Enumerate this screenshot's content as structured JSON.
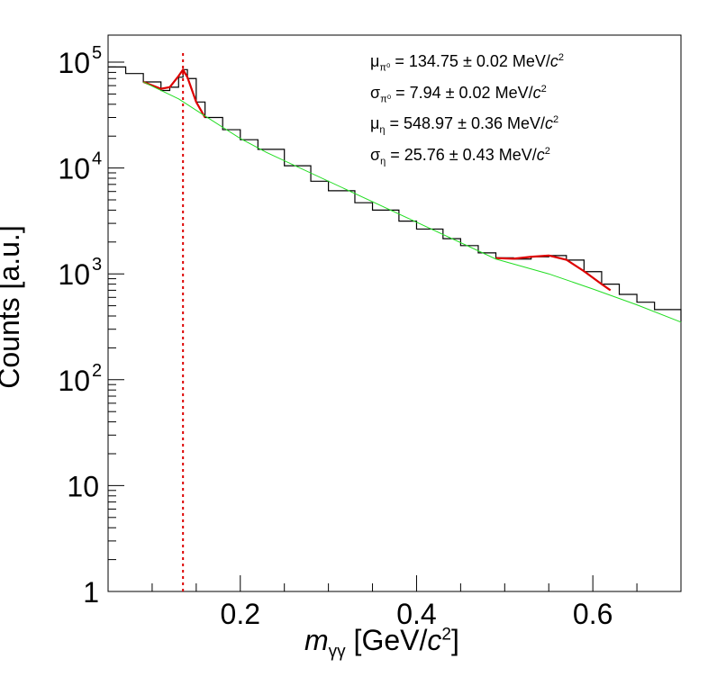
{
  "chart_data": {
    "type": "line",
    "xlabel_parts": {
      "m": "m",
      "sub": "γγ",
      "pre": " [GeV/",
      "c": "c",
      "sup": "2",
      "post": "]"
    },
    "ylabel": "Counts [a.u.]",
    "xlim": [
      0.05,
      0.7
    ],
    "ylim": [
      1,
      180000
    ],
    "yscale": "log",
    "x_ticks": [
      {
        "value": 0.2,
        "label": "0.2"
      },
      {
        "value": 0.4,
        "label": "0.4"
      },
      {
        "value": 0.6,
        "label": "0.6"
      }
    ],
    "y_ticks": [
      {
        "value": 1,
        "label": "1"
      },
      {
        "value": 10,
        "label": "10"
      },
      {
        "value": 100,
        "mantissa": "10",
        "exp": "2"
      },
      {
        "value": 1000,
        "mantissa": "10",
        "exp": "3"
      },
      {
        "value": 10000,
        "mantissa": "10",
        "exp": "4"
      },
      {
        "value": 100000,
        "mantissa": "10",
        "exp": "5"
      }
    ],
    "series": [
      {
        "role": "data histogram",
        "color": "#000000",
        "points": [
          [
            0.05,
            90000
          ],
          [
            0.07,
            78000
          ],
          [
            0.09,
            65000
          ],
          [
            0.11,
            54000
          ],
          [
            0.12,
            58000
          ],
          [
            0.13,
            72000
          ],
          [
            0.135,
            85000
          ],
          [
            0.14,
            70000
          ],
          [
            0.15,
            42000
          ],
          [
            0.16,
            30000
          ],
          [
            0.18,
            23000
          ],
          [
            0.2,
            18500
          ],
          [
            0.22,
            15000
          ],
          [
            0.25,
            10500
          ],
          [
            0.28,
            7500
          ],
          [
            0.3,
            6100
          ],
          [
            0.33,
            4700
          ],
          [
            0.35,
            4000
          ],
          [
            0.38,
            3150
          ],
          [
            0.4,
            2650
          ],
          [
            0.43,
            2150
          ],
          [
            0.45,
            1850
          ],
          [
            0.47,
            1580
          ],
          [
            0.49,
            1420
          ],
          [
            0.51,
            1380
          ],
          [
            0.53,
            1450
          ],
          [
            0.55,
            1490
          ],
          [
            0.57,
            1350
          ],
          [
            0.59,
            1050
          ],
          [
            0.61,
            800
          ],
          [
            0.63,
            640
          ],
          [
            0.65,
            540
          ],
          [
            0.67,
            460
          ],
          [
            0.7,
            355
          ]
        ]
      },
      {
        "role": "pi0 fit",
        "color": "#dd0000",
        "points": [
          [
            0.09,
            65000
          ],
          [
            0.11,
            56000
          ],
          [
            0.12,
            58000
          ],
          [
            0.13,
            74000
          ],
          [
            0.135,
            85000
          ],
          [
            0.14,
            72000
          ],
          [
            0.15,
            42000
          ],
          [
            0.16,
            30000
          ]
        ]
      },
      {
        "role": "eta fit",
        "color": "#dd0000",
        "points": [
          [
            0.49,
            1410
          ],
          [
            0.51,
            1390
          ],
          [
            0.53,
            1450
          ],
          [
            0.55,
            1490
          ],
          [
            0.57,
            1360
          ],
          [
            0.59,
            1060
          ],
          [
            0.61,
            800
          ],
          [
            0.62,
            700
          ]
        ]
      },
      {
        "role": "background",
        "color": "#22dd22",
        "points": [
          [
            0.09,
            65000
          ],
          [
            0.13,
            45000
          ],
          [
            0.16,
            31000
          ],
          [
            0.2,
            19000
          ],
          [
            0.23,
            14000
          ],
          [
            0.49,
            1380
          ],
          [
            0.55,
            1000
          ],
          [
            0.6,
            720
          ],
          [
            0.65,
            510
          ],
          [
            0.7,
            350
          ]
        ]
      }
    ],
    "vline": {
      "x": 0.135,
      "color": "#dd0000",
      "style": "dotted"
    },
    "annotations": [
      {
        "sym": "μ",
        "sub": "π⁰",
        "text": " = 134.75 ± 0.02 MeV/",
        "c": "c",
        "sup": "2"
      },
      {
        "sym": "σ",
        "sub": "π⁰",
        "text": " = 7.94 ± 0.02 MeV/",
        "c": "c",
        "sup": "2"
      },
      {
        "sym": "μ",
        "sub": "η",
        "text": " = 548.97 ± 0.36 MeV/",
        "c": "c",
        "sup": "2"
      },
      {
        "sym": "σ",
        "sub": "η",
        "text": " = 25.76 ± 0.43 MeV/",
        "c": "c",
        "sup": "2"
      }
    ],
    "grid": false,
    "legend": "none"
  }
}
